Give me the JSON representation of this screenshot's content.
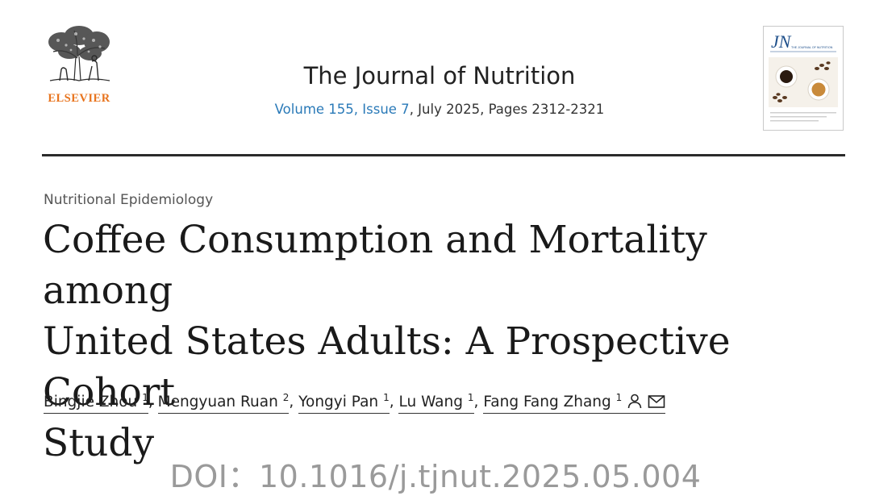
{
  "publisher": {
    "name": "ELSEVIER",
    "logo_icon": "elsevier-tree-icon"
  },
  "journal": {
    "name": "The Journal of Nutrition",
    "volume_issue": "Volume 155, Issue 7",
    "date_pages": ", July 2025, Pages 2312-2321",
    "cover_text": "JN",
    "cover_subtitle": "THE JOURNAL OF NUTRITION",
    "cover_image_icon": "coffee-cups-icon"
  },
  "article": {
    "section": "Nutritional Epidemiology",
    "title_lines": [
      "Coffee Consumption and Mortality among",
      "United States Adults: A Prospective Cohort",
      "Study"
    ],
    "authors": [
      {
        "name": "Bingjie Zhou",
        "aff": "1"
      },
      {
        "name": "Mengyuan Ruan",
        "aff": "2"
      },
      {
        "name": "Yongyi Pan",
        "aff": "1"
      },
      {
        "name": "Lu Wang",
        "aff": "1"
      },
      {
        "name": "Fang Fang Zhang",
        "aff": "1"
      }
    ],
    "separator": ",",
    "corresponding_icons": [
      "person-icon",
      "envelope-icon"
    ]
  },
  "doi": "DOI：10.1016/j.tjnut.2025.05.004",
  "colors": {
    "publisher": "#e8741e",
    "link": "#2a7ab8",
    "doi": "#9a9a9a"
  }
}
